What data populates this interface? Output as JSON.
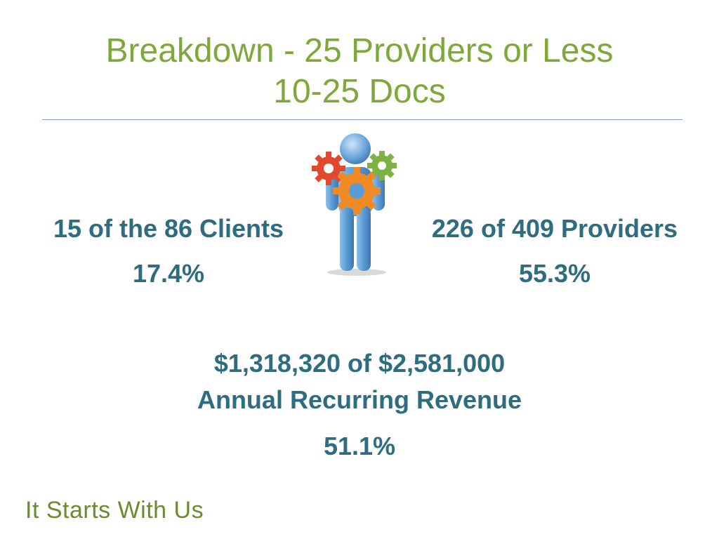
{
  "slide": {
    "title_line1": "Breakdown - 25 Providers or Less",
    "title_line2": "10-25 Docs",
    "left_stat": {
      "label": "15 of the 86 Clients",
      "percent": "17.4%"
    },
    "right_stat": {
      "label": "226 of 409 Providers",
      "percent": "55.3%"
    },
    "revenue": {
      "amount": "$1,318,320 of $2,581,000",
      "label": "Annual Recurring Revenue",
      "percent": "51.1%"
    },
    "footer": "It Starts With Us"
  },
  "figure": {
    "icon": "person-with-gears-icon",
    "colors": {
      "person": "#5b9bd5",
      "gear_red": "#e0492e",
      "gear_orange": "#f08a24",
      "gear_green": "#7cb342"
    }
  },
  "colors": {
    "title": "#7fa83a",
    "stat_text": "#2e6c80",
    "rule": "#7f9cc2",
    "footer": "#6b8c2e"
  }
}
